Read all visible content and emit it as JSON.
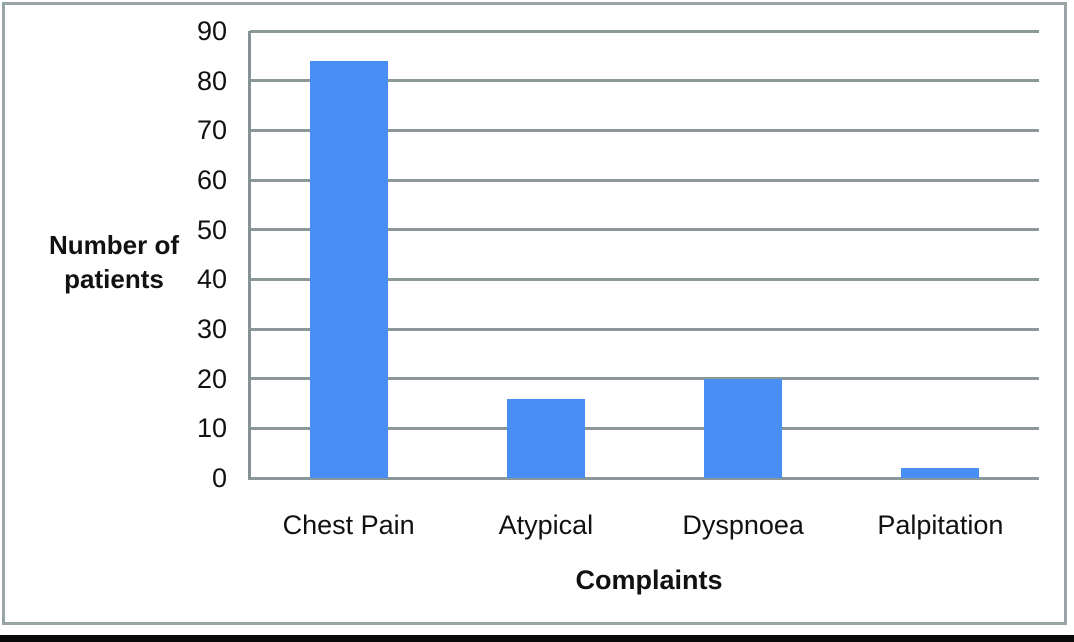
{
  "figure": {
    "background": "#ffffff",
    "border_color": "#98a5a6",
    "bottom_rule_color": "#0a0a0a"
  },
  "chart_data": {
    "type": "bar",
    "title": "",
    "categories": [
      "Chest Pain",
      "Atypical",
      "Dyspnoea",
      "Palpitation"
    ],
    "values": [
      84,
      16,
      20,
      2
    ],
    "xlabel": "Complaints",
    "ylabel": "Number of patients",
    "ylabel_lines": [
      "Number of",
      "patients"
    ],
    "ylim": [
      0,
      90
    ],
    "yticks": [
      0,
      10,
      20,
      30,
      40,
      50,
      60,
      70,
      80,
      90
    ],
    "grid": true,
    "legend_position": "none",
    "bar_color": "#488ef4",
    "gridline_color": "#8b9899",
    "axis_color": "#859293",
    "text_color": "#111111"
  }
}
